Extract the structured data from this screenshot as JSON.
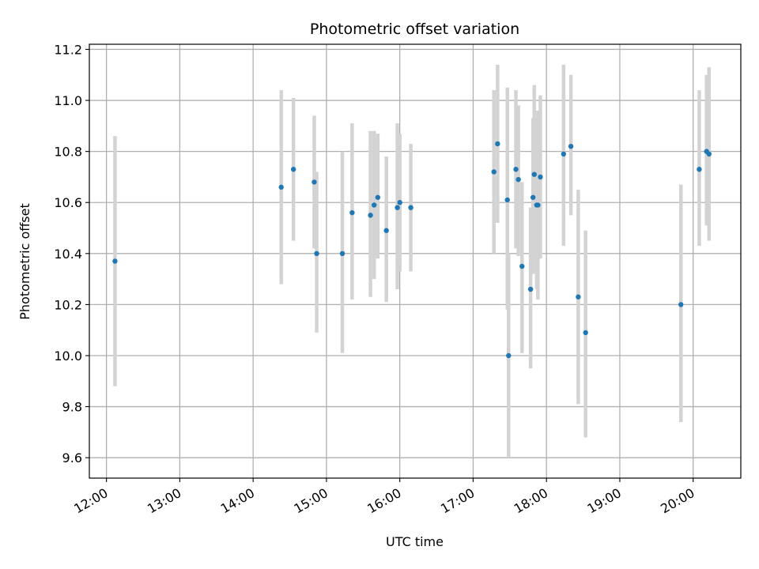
{
  "chart_data": {
    "type": "scatter",
    "title": "Photometric offset variation",
    "xlabel": "UTC time",
    "ylabel": "Photometric offset",
    "x_tick_labels": [
      "12:00",
      "13:00",
      "14:00",
      "15:00",
      "16:00",
      "17:00",
      "18:00",
      "19:00",
      "20:00"
    ],
    "y_tick_labels": [
      "9.6",
      "9.8",
      "10.0",
      "10.2",
      "10.4",
      "10.6",
      "10.8",
      "11.0",
      "11.2"
    ],
    "y_ticks": [
      9.6,
      9.8,
      10.0,
      10.2,
      10.4,
      10.6,
      10.8,
      11.0,
      11.2
    ],
    "xlim": [
      "11:46",
      "20:39"
    ],
    "ylim": [
      9.52,
      11.22
    ],
    "grid": true,
    "marker_color": "#1f77b4",
    "errorbar_color": "#d3d3d3",
    "points": [
      {
        "x": "12:07",
        "y": 10.37,
        "lo": 9.88,
        "hi": 10.86
      },
      {
        "x": "14:23",
        "y": 10.66,
        "lo": 10.28,
        "hi": 11.04
      },
      {
        "x": "14:33",
        "y": 10.73,
        "lo": 10.45,
        "hi": 11.01
      },
      {
        "x": "14:50",
        "y": 10.68,
        "lo": 10.42,
        "hi": 10.94
      },
      {
        "x": "14:52",
        "y": 10.4,
        "lo": 10.09,
        "hi": 10.72
      },
      {
        "x": "15:13",
        "y": 10.4,
        "lo": 10.01,
        "hi": 10.8
      },
      {
        "x": "15:21",
        "y": 10.56,
        "lo": 10.22,
        "hi": 10.91
      },
      {
        "x": "15:36",
        "y": 10.55,
        "lo": 10.23,
        "hi": 10.88
      },
      {
        "x": "15:39",
        "y": 10.59,
        "lo": 10.3,
        "hi": 10.88
      },
      {
        "x": "15:42",
        "y": 10.62,
        "lo": 10.38,
        "hi": 10.87
      },
      {
        "x": "15:49",
        "y": 10.49,
        "lo": 10.21,
        "hi": 10.78
      },
      {
        "x": "15:58",
        "y": 10.58,
        "lo": 10.26,
        "hi": 10.91
      },
      {
        "x": "16:00",
        "y": 10.6,
        "lo": 10.33,
        "hi": 10.87
      },
      {
        "x": "16:09",
        "y": 10.58,
        "lo": 10.33,
        "hi": 10.83
      },
      {
        "x": "17:17",
        "y": 10.72,
        "lo": 10.4,
        "hi": 11.04
      },
      {
        "x": "17:20",
        "y": 10.83,
        "lo": 10.52,
        "hi": 11.14
      },
      {
        "x": "17:28",
        "y": 10.61,
        "lo": 10.18,
        "hi": 11.05
      },
      {
        "x": "17:29",
        "y": 10.0,
        "lo": 9.6,
        "hi": 10.4
      },
      {
        "x": "17:35",
        "y": 10.73,
        "lo": 10.42,
        "hi": 11.04
      },
      {
        "x": "17:37",
        "y": 10.69,
        "lo": 10.39,
        "hi": 10.98
      },
      {
        "x": "17:40",
        "y": 10.35,
        "lo": 10.01,
        "hi": 10.68
      },
      {
        "x": "17:47",
        "y": 10.26,
        "lo": 9.95,
        "hi": 10.58
      },
      {
        "x": "17:49",
        "y": 10.62,
        "lo": 10.32,
        "hi": 10.93
      },
      {
        "x": "17:50",
        "y": 10.71,
        "lo": 10.37,
        "hi": 11.06
      },
      {
        "x": "17:52",
        "y": 10.59,
        "lo": 10.26,
        "hi": 10.93
      },
      {
        "x": "17:53",
        "y": 10.59,
        "lo": 10.22,
        "hi": 10.96
      },
      {
        "x": "17:55",
        "y": 10.7,
        "lo": 10.38,
        "hi": 11.02
      },
      {
        "x": "18:14",
        "y": 10.79,
        "lo": 10.43,
        "hi": 11.14
      },
      {
        "x": "18:20",
        "y": 10.82,
        "lo": 10.55,
        "hi": 11.1
      },
      {
        "x": "18:26",
        "y": 10.23,
        "lo": 9.81,
        "hi": 10.65
      },
      {
        "x": "18:32",
        "y": 10.09,
        "lo": 9.68,
        "hi": 10.49
      },
      {
        "x": "19:50",
        "y": 10.2,
        "lo": 9.74,
        "hi": 10.67
      },
      {
        "x": "20:05",
        "y": 10.73,
        "lo": 10.43,
        "hi": 11.04
      },
      {
        "x": "20:11",
        "y": 10.8,
        "lo": 10.51,
        "hi": 11.1
      },
      {
        "x": "20:13",
        "y": 10.79,
        "lo": 10.45,
        "hi": 11.13
      }
    ]
  }
}
